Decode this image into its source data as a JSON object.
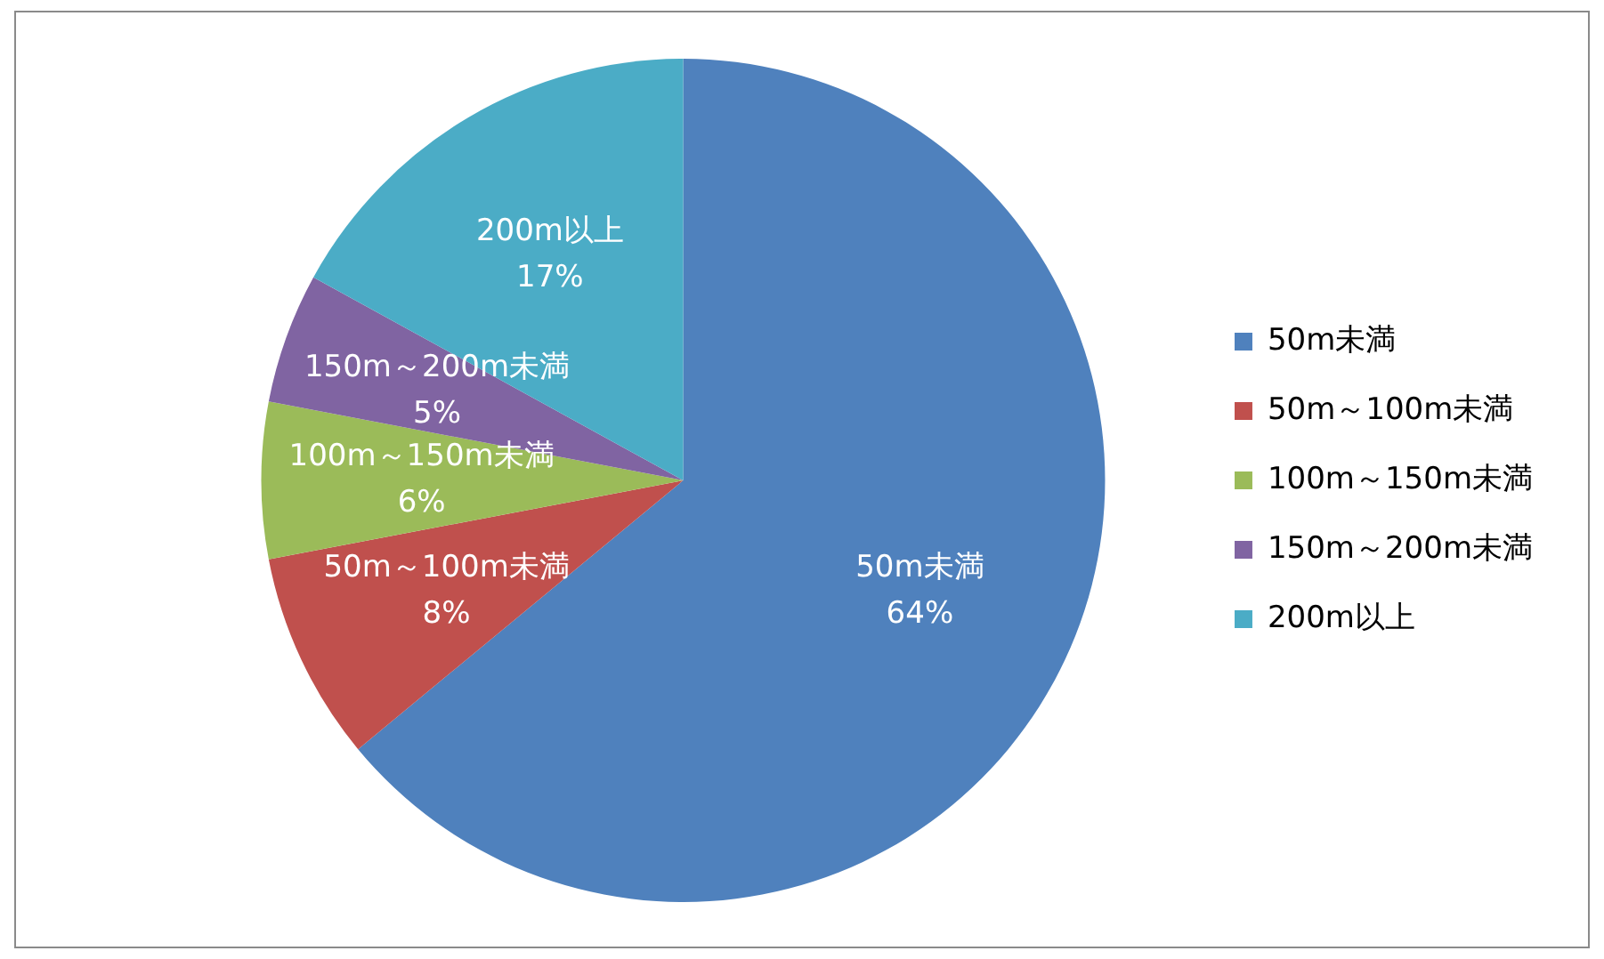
{
  "chart_data": {
    "type": "pie",
    "categories": [
      "50m未満",
      "50m～100m未満",
      "100m～150m未満",
      "150m～200m未満",
      "200m以上"
    ],
    "values": [
      64,
      8,
      6,
      5,
      17
    ],
    "value_labels": [
      "64%",
      "8%",
      "6%",
      "5%",
      "17%"
    ],
    "colors": [
      "#4f81bd",
      "#c0504d",
      "#9bbb59",
      "#8064a2",
      "#4bacc6"
    ],
    "legend": "right"
  }
}
